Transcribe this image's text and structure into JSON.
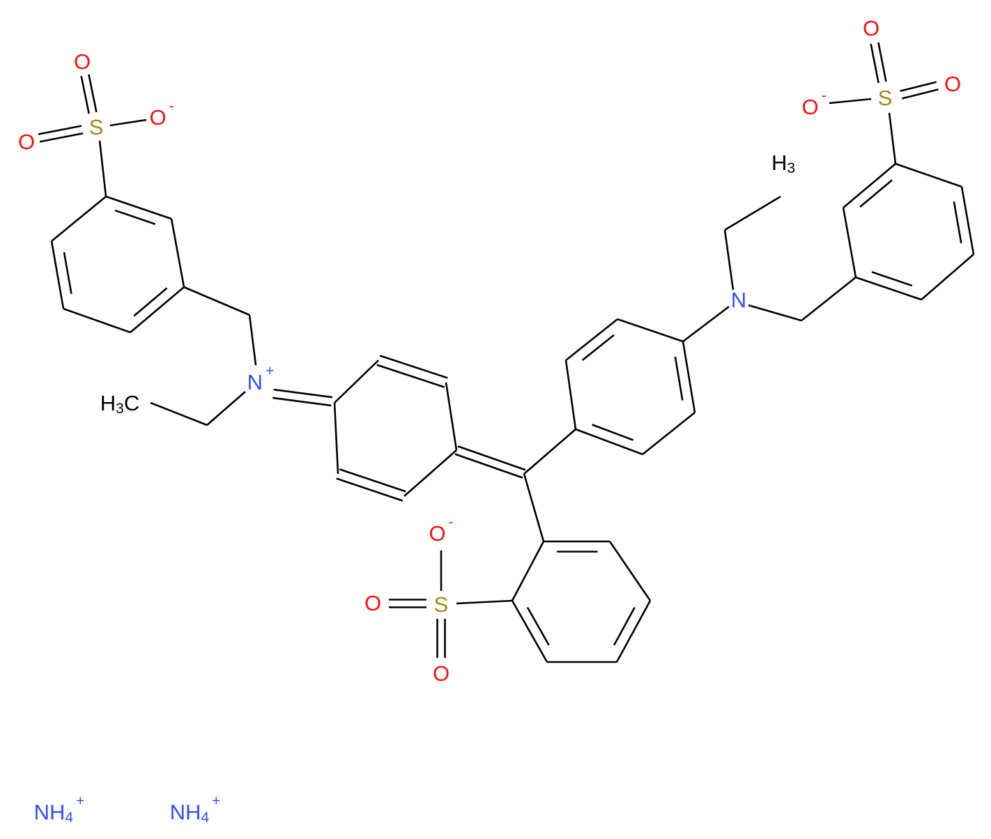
{
  "labels": [
    {
      "text": "O"
    },
    {
      "text": "S"
    },
    {
      "text": "O",
      "sup": "-"
    },
    {
      "text": "O"
    },
    {
      "text": "N",
      "sup": "+"
    },
    {
      "text": "H",
      "sub": "3",
      "tail": "C"
    },
    {
      "text": "N"
    },
    {
      "text": "H",
      "sub": "3"
    },
    {
      "text": "O",
      "sup": "-"
    },
    {
      "text": "S"
    },
    {
      "text": "O"
    },
    {
      "text": "O"
    },
    {
      "text": "O",
      "sup": "-"
    },
    {
      "text": "S"
    },
    {
      "text": "O"
    },
    {
      "text": "O"
    },
    {
      "text": "NH",
      "sub": "4",
      "sup": "+"
    },
    {
      "text": "NH",
      "sub": "4",
      "sup": "+"
    }
  ]
}
